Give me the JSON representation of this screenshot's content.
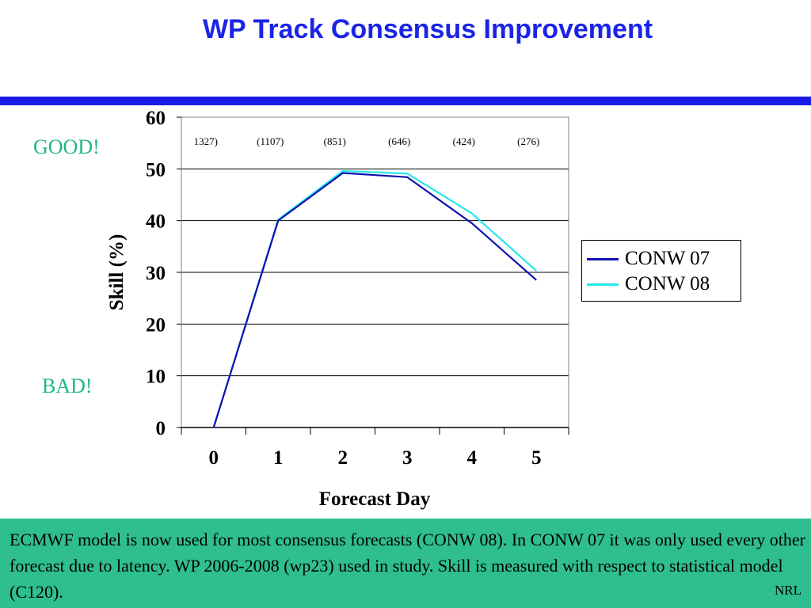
{
  "title": "WP Track Consensus Improvement",
  "annotations": {
    "good": "GOOD!",
    "bad": "BAD!"
  },
  "colors": {
    "title": "#1a24e6",
    "rule": "#1a1ae6",
    "footer_bg": "#2fbe8f",
    "annotation": "#1fb58a"
  },
  "chart_data": {
    "type": "line",
    "title": "",
    "xlabel": "Forecast Day",
    "ylabel": "Skill (%)",
    "x": [
      0,
      1,
      2,
      3,
      4,
      5
    ],
    "x_tick_labels": [
      "0",
      "1",
      "2",
      "3",
      "4",
      "5"
    ],
    "y_tick_labels": [
      "0",
      "10",
      "20",
      "30",
      "40",
      "50",
      "60"
    ],
    "ylim": [
      0,
      60
    ],
    "grid": "horizontal",
    "legend_position": "right",
    "sample_counts": [
      "1327)",
      "(1107)",
      "(851)",
      "(646)",
      "(424)",
      "(276)"
    ],
    "series": [
      {
        "name": "CONW 07",
        "color": "#1010b0",
        "values": [
          0,
          40.0,
          49.2,
          48.4,
          39.5,
          28.5
        ]
      },
      {
        "name": "CONW 08",
        "color": "#22e8ee",
        "values": [
          0,
          40.2,
          49.6,
          49.1,
          41.4,
          30.3
        ]
      }
    ]
  },
  "footer": {
    "text": "ECMWF model is now used for most consensus forecasts (CONW 08).  In CONW 07 it was only used every other forecast due to latency.  WP 2006-2008 (wp23) used in study.  Skill is measured with respect to statistical model (C120).",
    "org": "NRL"
  }
}
